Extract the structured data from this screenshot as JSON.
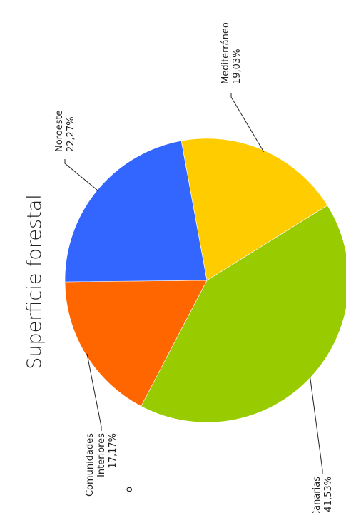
{
  "chart_data": {
    "type": "pie",
    "title": "Superficie forestal",
    "orientation": "rotated-90-ccw",
    "slices": [
      {
        "label_lines": [
          "Mediterráneo"
        ],
        "value_label": "19,03%",
        "value": 19.03,
        "color": "#FFCC00"
      },
      {
        "label_lines": [
          "Canarias"
        ],
        "value_label": "41,53%",
        "value": 41.53,
        "color": "#99CC00"
      },
      {
        "label_lines": [
          "Comunidades",
          "Interiores"
        ],
        "value_label": "17,17%",
        "value": 17.17,
        "color": "#FF6600"
      },
      {
        "label_lines": [
          "Noroeste"
        ],
        "value_label": "22,27%",
        "value": 22.27,
        "color": "#3366FF"
      }
    ],
    "stray_text": "o"
  }
}
